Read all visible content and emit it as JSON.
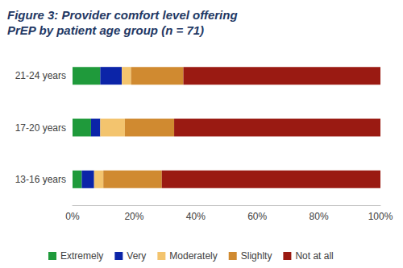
{
  "chart_data": {
    "type": "bar",
    "orientation": "horizontal",
    "stacked": true,
    "title": "Figure 3: Provider comfort level offering PrEP by patient age group (n = 71)",
    "categories": [
      "13-16 years",
      "17-20 years",
      "21-24 years"
    ],
    "series": [
      {
        "name": "Extremely",
        "color": "#1f9a3b",
        "values": [
          3,
          6,
          9
        ]
      },
      {
        "name": "Very",
        "color": "#0b24a8",
        "values": [
          4,
          3,
          7
        ]
      },
      {
        "name": "Moderately",
        "color": "#f3c46e",
        "values": [
          3,
          8,
          3
        ]
      },
      {
        "name": "Slighlty",
        "color": "#d08a30",
        "values": [
          19,
          16,
          17
        ]
      },
      {
        "name": "Not at all",
        "color": "#9a1a12",
        "values": [
          71,
          67,
          64
        ]
      }
    ],
    "xlim": [
      0,
      100
    ],
    "xticks": [
      {
        "value": 0,
        "label": "0%"
      },
      {
        "value": 20,
        "label": "20%"
      },
      {
        "value": 40,
        "label": "40%"
      },
      {
        "value": 60,
        "label": "60%"
      },
      {
        "value": 80,
        "label": "80%"
      },
      {
        "value": 100,
        "label": "100%"
      }
    ],
    "grid": false,
    "legend": "bottom"
  }
}
